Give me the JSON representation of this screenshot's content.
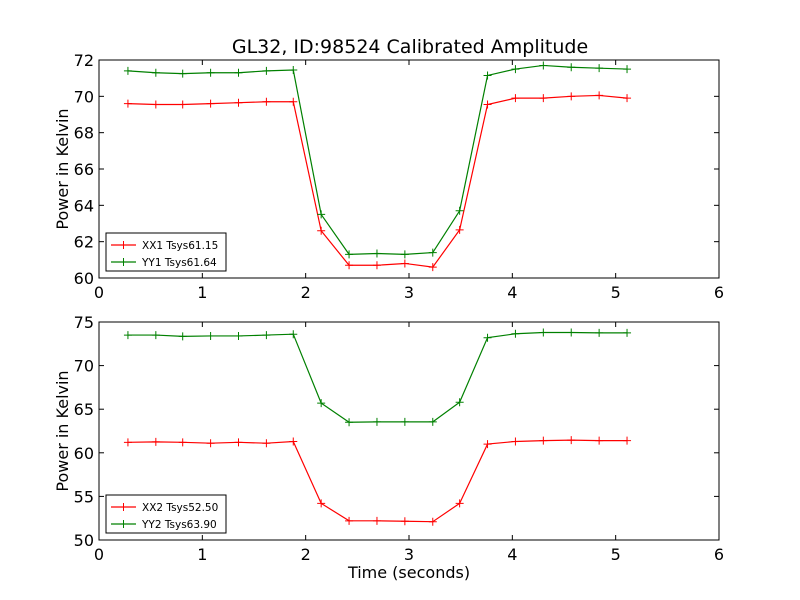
{
  "chart_data": [
    {
      "type": "line",
      "title": "GL32, ID:98524 Calibrated Amplitude",
      "xlabel": "",
      "ylabel": "Power in Kelvin",
      "xlim": [
        0,
        6
      ],
      "ylim": [
        60,
        72
      ],
      "xticks": [
        0,
        1,
        2,
        3,
        4,
        5,
        6
      ],
      "yticks": [
        60,
        62,
        64,
        66,
        68,
        70,
        72
      ],
      "legend_position": "lower-left",
      "grid": false,
      "x": [
        0.28,
        0.55,
        0.81,
        1.08,
        1.35,
        1.62,
        1.88,
        2.15,
        2.42,
        2.69,
        2.96,
        3.23,
        3.49,
        3.76,
        4.03,
        4.3,
        4.57,
        4.84,
        5.11
      ],
      "series": [
        {
          "name": "XX1 Tsys61.15",
          "color": "#ff0000",
          "values": [
            69.6,
            69.55,
            69.55,
            69.6,
            69.65,
            69.7,
            69.7,
            62.6,
            60.7,
            60.7,
            60.8,
            60.6,
            62.65,
            69.55,
            69.9,
            69.9,
            70.0,
            70.05,
            69.9
          ]
        },
        {
          "name": "YY1 Tsys61.64",
          "color": "#008000",
          "values": [
            71.4,
            71.3,
            71.25,
            71.3,
            71.3,
            71.4,
            71.45,
            63.5,
            61.3,
            61.35,
            61.3,
            61.4,
            63.7,
            71.15,
            71.5,
            71.7,
            71.6,
            71.55,
            71.5
          ]
        }
      ]
    },
    {
      "type": "line",
      "title": "",
      "xlabel": "Time (seconds)",
      "ylabel": "Power in Kelvin",
      "xlim": [
        0,
        6
      ],
      "ylim": [
        50,
        75
      ],
      "xticks": [
        0,
        1,
        2,
        3,
        4,
        5,
        6
      ],
      "yticks": [
        50,
        55,
        60,
        65,
        70,
        75
      ],
      "legend_position": "lower-left",
      "grid": false,
      "x": [
        0.28,
        0.55,
        0.81,
        1.08,
        1.35,
        1.62,
        1.88,
        2.15,
        2.42,
        2.69,
        2.96,
        3.23,
        3.49,
        3.76,
        4.03,
        4.3,
        4.57,
        4.84,
        5.11
      ],
      "series": [
        {
          "name": "XX2 Tsys52.50",
          "color": "#ff0000",
          "values": [
            61.2,
            61.25,
            61.2,
            61.1,
            61.2,
            61.1,
            61.3,
            54.2,
            52.2,
            52.2,
            52.15,
            52.1,
            54.2,
            61.0,
            61.3,
            61.4,
            61.45,
            61.4,
            61.4
          ]
        },
        {
          "name": "YY2 Tsys63.90",
          "color": "#008000",
          "values": [
            73.5,
            73.5,
            73.35,
            73.4,
            73.4,
            73.5,
            73.6,
            65.7,
            63.5,
            63.55,
            63.55,
            63.55,
            65.8,
            73.2,
            73.65,
            73.8,
            73.8,
            73.75,
            73.75
          ]
        }
      ]
    }
  ]
}
